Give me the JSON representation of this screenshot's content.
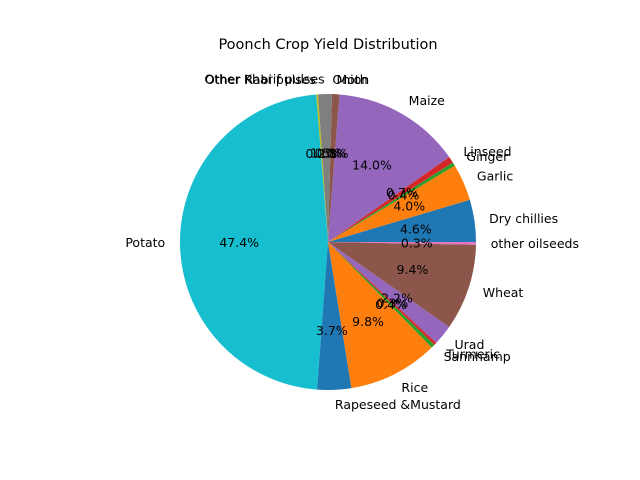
{
  "chart_data": {
    "type": "pie",
    "title": "Poonch Crop Yield Distribution",
    "start_angle_deg": 0,
    "direction": "counterclockwise",
    "slices": [
      {
        "label": "Dry chillies",
        "value": 4.6,
        "pct_text": "4.6%",
        "color": "#1f77b4"
      },
      {
        "label": "Garlic",
        "value": 4.0,
        "pct_text": "4.0%",
        "color": "#ff7f0e"
      },
      {
        "label": "Ginger",
        "value": 0.4,
        "pct_text": "0.4%",
        "color": "#2ca02c"
      },
      {
        "label": "Linseed",
        "value": 0.7,
        "pct_text": "0.7%",
        "color": "#d62728"
      },
      {
        "label": "Maize",
        "value": 14.0,
        "pct_text": "14.0%",
        "color": "#9467bd"
      },
      {
        "label": "Moth",
        "value": 0.8,
        "pct_text": "0.8%",
        "color": "#8c564b"
      },
      {
        "label": "Onion",
        "value": 0.0,
        "pct_text": "0.0%",
        "color": "#e377c2"
      },
      {
        "label": "Other Kharif pulses",
        "value": 1.5,
        "pct_text": "1.5%",
        "color": "#7f7f7f"
      },
      {
        "label": "Other Rabi pulses",
        "value": 0.2,
        "pct_text": "0.2%",
        "color": "#bcbd22"
      },
      {
        "label": "Potato",
        "value": 47.4,
        "pct_text": "47.4%",
        "color": "#17becf"
      },
      {
        "label": "Rapeseed &Mustard",
        "value": 3.7,
        "pct_text": "3.7%",
        "color": "#1f77b4"
      },
      {
        "label": "Rice",
        "value": 9.8,
        "pct_text": "9.8%",
        "color": "#ff7f0e"
      },
      {
        "label": "Sannhamp",
        "value": 0.4,
        "pct_text": "0.4%",
        "color": "#2ca02c"
      },
      {
        "label": "Turmeric",
        "value": 0.3,
        "pct_text": "0.3%",
        "color": "#d62728"
      },
      {
        "label": "Urad",
        "value": 2.2,
        "pct_text": "2.2%",
        "color": "#9467bd"
      },
      {
        "label": "Wheat",
        "value": 9.4,
        "pct_text": "9.4%",
        "color": "#8c564b"
      },
      {
        "label": "other oilseeds",
        "value": 0.3,
        "pct_text": "0.3%",
        "color": "#e377c2"
      }
    ]
  }
}
